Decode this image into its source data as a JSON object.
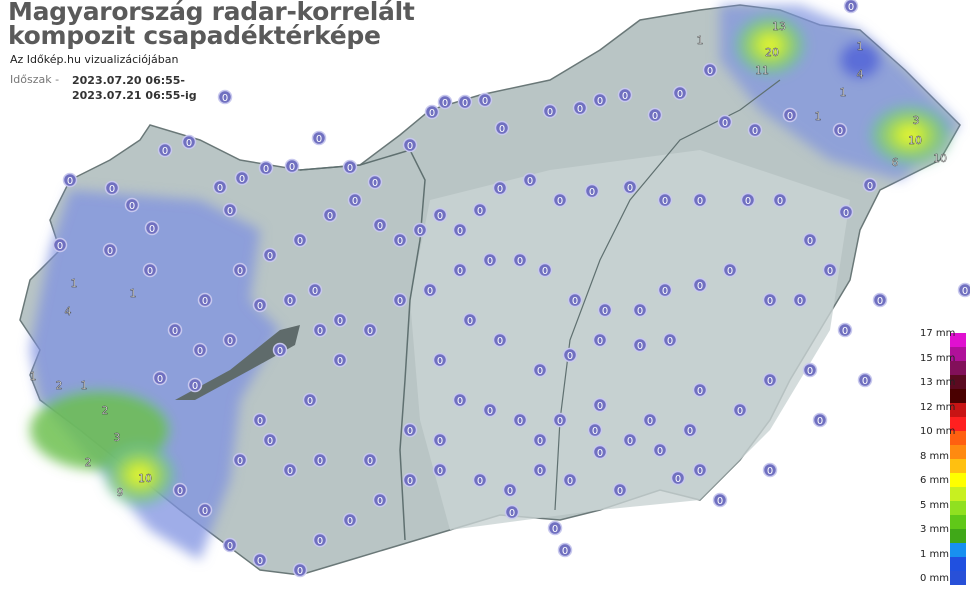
{
  "header": {
    "title_line1": "Magyarország radar-korrelált",
    "title_line2": "kompozit csapadéktérképe",
    "subtitle": "Az Időkép.hu vizualizációjában",
    "period_label": "Időszak -",
    "period_start": "2023.07.20 06:55-",
    "period_end": "2023.07.21 06:55-ig"
  },
  "legend": {
    "labels": [
      "17 mm",
      "15 mm",
      "13 mm",
      "12 mm",
      "10 mm",
      "8 mm",
      "6 mm",
      "5 mm",
      "3 mm",
      "1 mm",
      "0 mm"
    ],
    "colors": [
      "#e010d0",
      "#b0109a",
      "#82105a",
      "#5a0a20",
      "#4a0000",
      "#c81414",
      "#ff2020",
      "#ff6010",
      "#ff8a10",
      "#ffc010",
      "#ffff00",
      "#c8f020",
      "#90e020",
      "#60c818",
      "#40a818",
      "#1890f0",
      "#2050e0",
      "#2850d8"
    ]
  },
  "stations": {
    "nonzero_values": [
      20,
      13,
      11,
      1,
      4,
      3,
      10,
      10,
      6,
      1,
      1,
      4,
      1,
      2,
      1,
      3,
      10,
      9,
      1,
      1,
      1,
      2,
      2
    ],
    "zero_value": 0,
    "marker_color": "#7070c0"
  },
  "colors": {
    "land": "#b8c4c4",
    "rain_light": "#8898e0",
    "rain_green": "#70c040",
    "rain_yellow": "#ffff40"
  }
}
